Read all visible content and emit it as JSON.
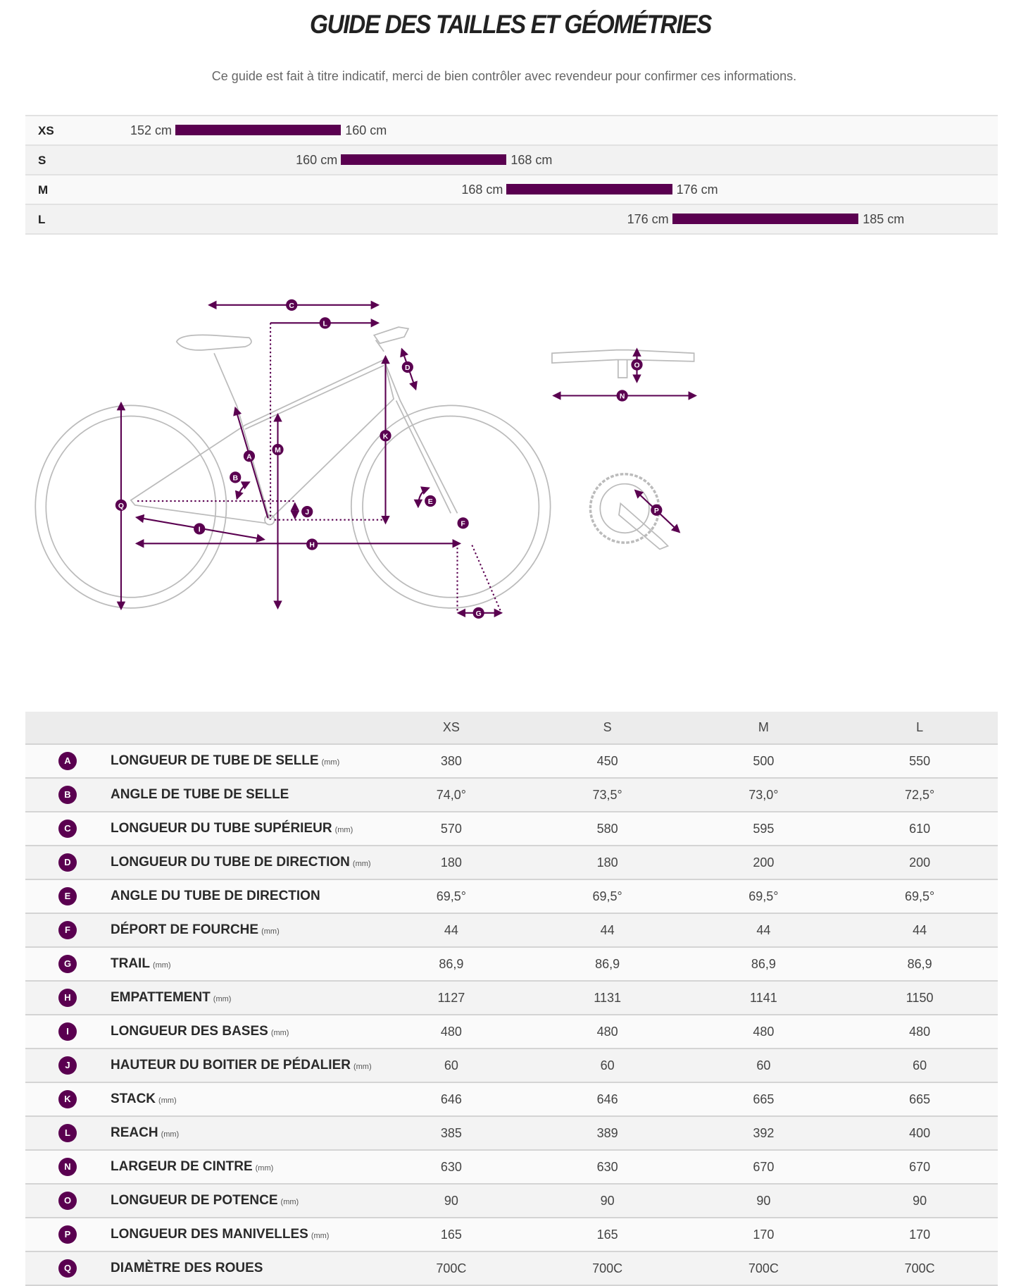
{
  "title": "GUIDE DES TAILLES ET GÉOMÉTRIES",
  "subtitle": "Ce guide est fait à titre indicatif, merci de bien contrôler avec revendeur pour confirmer ces informations.",
  "accent_color": "#5a0050",
  "size_chart": [
    {
      "size": "XS",
      "min": "152 cm",
      "max": "160 cm",
      "min_cm": 152,
      "max_cm": 160
    },
    {
      "size": "S",
      "min": "160 cm",
      "max": "168 cm",
      "min_cm": 160,
      "max_cm": 168
    },
    {
      "size": "M",
      "min": "168 cm",
      "max": "176 cm",
      "min_cm": 168,
      "max_cm": 176
    },
    {
      "size": "L",
      "min": "176 cm",
      "max": "185 cm",
      "min_cm": 176,
      "max_cm": 185
    }
  ],
  "diagram_labels": {
    "A": "A",
    "B": "B",
    "C": "C",
    "D": "D",
    "E": "E",
    "F": "F",
    "G": "G",
    "H": "H",
    "I": "I",
    "J": "J",
    "K": "K",
    "L": "L",
    "M": "M",
    "N": "N",
    "O": "O",
    "P": "P",
    "Q": "Q"
  },
  "table": {
    "columns": [
      "XS",
      "S",
      "M",
      "L"
    ],
    "unit": "(mm)",
    "rows": [
      {
        "letter": "A",
        "label": "LONGUEUR DE TUBE DE SELLE",
        "mm": true,
        "values": [
          "380",
          "450",
          "500",
          "550"
        ]
      },
      {
        "letter": "B",
        "label": "ANGLE DE TUBE DE SELLE",
        "mm": false,
        "values": [
          "74,0°",
          "73,5°",
          "73,0°",
          "72,5°"
        ]
      },
      {
        "letter": "C",
        "label": "LONGUEUR DU TUBE SUPÉRIEUR",
        "mm": true,
        "values": [
          "570",
          "580",
          "595",
          "610"
        ]
      },
      {
        "letter": "D",
        "label": "LONGUEUR DU TUBE DE DIRECTION",
        "mm": true,
        "values": [
          "180",
          "180",
          "200",
          "200"
        ]
      },
      {
        "letter": "E",
        "label": "ANGLE DU TUBE DE DIRECTION",
        "mm": false,
        "values": [
          "69,5°",
          "69,5°",
          "69,5°",
          "69,5°"
        ]
      },
      {
        "letter": "F",
        "label": "DÉPORT DE FOURCHE",
        "mm": true,
        "values": [
          "44",
          "44",
          "44",
          "44"
        ]
      },
      {
        "letter": "G",
        "label": "TRAIL",
        "mm": true,
        "values": [
          "86,9",
          "86,9",
          "86,9",
          "86,9"
        ]
      },
      {
        "letter": "H",
        "label": "EMPATTEMENT",
        "mm": true,
        "values": [
          "1127",
          "1131",
          "1141",
          "1150"
        ]
      },
      {
        "letter": "I",
        "label": "LONGUEUR DES BASES",
        "mm": true,
        "values": [
          "480",
          "480",
          "480",
          "480"
        ]
      },
      {
        "letter": "J",
        "label": "HAUTEUR DU BOITIER DE PÉDALIER",
        "mm": true,
        "values": [
          "60",
          "60",
          "60",
          "60"
        ]
      },
      {
        "letter": "K",
        "label": "STACK",
        "mm": true,
        "values": [
          "646",
          "646",
          "665",
          "665"
        ]
      },
      {
        "letter": "L",
        "label": "REACH",
        "mm": true,
        "values": [
          "385",
          "389",
          "392",
          "400"
        ]
      },
      {
        "letter": "N",
        "label": "LARGEUR DE CINTRE",
        "mm": true,
        "values": [
          "630",
          "630",
          "670",
          "670"
        ]
      },
      {
        "letter": "O",
        "label": "LONGUEUR DE POTENCE",
        "mm": true,
        "values": [
          "90",
          "90",
          "90",
          "90"
        ]
      },
      {
        "letter": "P",
        "label": "LONGUEUR DES MANIVELLES",
        "mm": true,
        "values": [
          "165",
          "165",
          "170",
          "170"
        ]
      },
      {
        "letter": "Q",
        "label": "DIAMÈTRE DES ROUES",
        "mm": false,
        "values": [
          "700C",
          "700C",
          "700C",
          "700C"
        ]
      }
    ]
  }
}
